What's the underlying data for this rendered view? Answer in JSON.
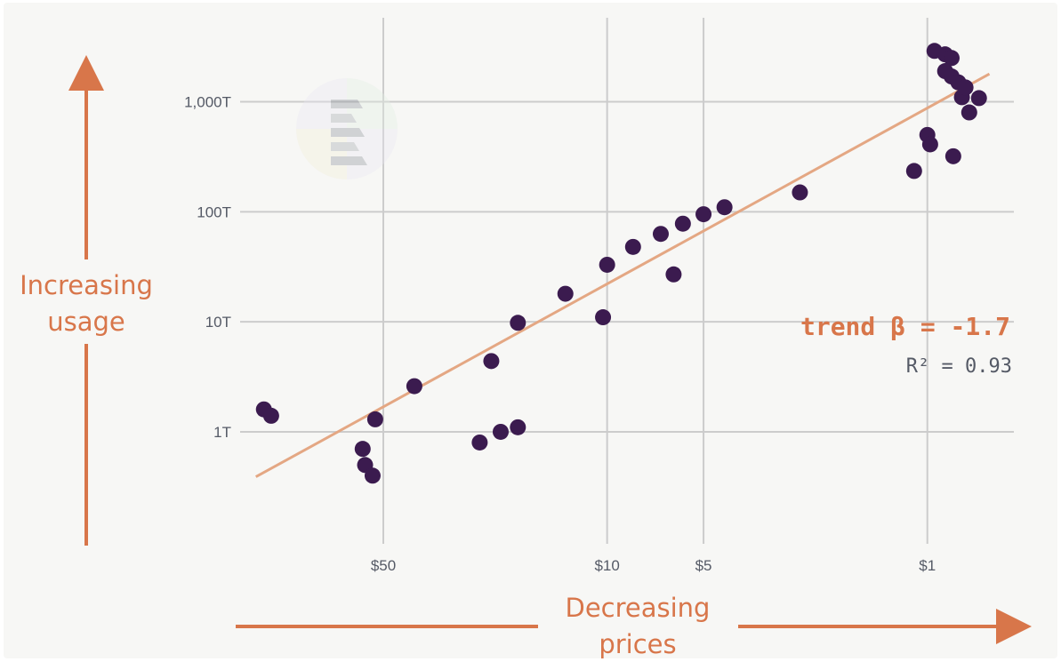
{
  "chart_data": {
    "type": "scatter",
    "x_scale": "log (reversed)",
    "y_scale": "log",
    "x_tick_labels": [
      "$50",
      "$10",
      "$5",
      "$1"
    ],
    "x_tick_values": [
      50,
      10,
      5,
      1
    ],
    "y_tick_labels": [
      "1T",
      "10T",
      "100T",
      "1,000T"
    ],
    "y_tick_values": [
      1,
      10,
      100,
      1000
    ],
    "y_unit": "T",
    "xlim": [
      140,
      0.53
    ],
    "ylim": [
      0.12,
      4000
    ],
    "grid": true,
    "ylabel_lines": [
      "Increasing",
      "usage"
    ],
    "xlabel_lines": [
      "Decreasing",
      "prices"
    ],
    "trend": {
      "label": "trend β = -1.7",
      "r2_label": "R² = 0.93",
      "slope": -1.7,
      "r2": 0.93,
      "line": [
        [
          125,
          0.39
        ],
        [
          0.64,
          1790
        ]
      ]
    },
    "points": [
      {
        "x": 118,
        "y": 1.6
      },
      {
        "x": 112,
        "y": 1.4
      },
      {
        "x": 58,
        "y": 0.7
      },
      {
        "x": 57,
        "y": 0.5
      },
      {
        "x": 54,
        "y": 0.4
      },
      {
        "x": 53,
        "y": 1.3
      },
      {
        "x": 40,
        "y": 2.6
      },
      {
        "x": 25,
        "y": 0.8
      },
      {
        "x": 23,
        "y": 4.4
      },
      {
        "x": 21.5,
        "y": 1.0
      },
      {
        "x": 19,
        "y": 9.8
      },
      {
        "x": 19,
        "y": 1.1
      },
      {
        "x": 13.5,
        "y": 18
      },
      {
        "x": 10.3,
        "y": 11
      },
      {
        "x": 10,
        "y": 33
      },
      {
        "x": 8.3,
        "y": 48
      },
      {
        "x": 6.8,
        "y": 63
      },
      {
        "x": 6.2,
        "y": 27
      },
      {
        "x": 5.8,
        "y": 78
      },
      {
        "x": 5.0,
        "y": 95
      },
      {
        "x": 4.3,
        "y": 110
      },
      {
        "x": 2.5,
        "y": 150
      },
      {
        "x": 1.1,
        "y": 235
      },
      {
        "x": 1.0,
        "y": 500
      },
      {
        "x": 0.98,
        "y": 410
      },
      {
        "x": 0.95,
        "y": 2900
      },
      {
        "x": 0.88,
        "y": 2700
      },
      {
        "x": 0.88,
        "y": 1900
      },
      {
        "x": 0.84,
        "y": 2500
      },
      {
        "x": 0.84,
        "y": 1700
      },
      {
        "x": 0.83,
        "y": 320
      },
      {
        "x": 0.8,
        "y": 1500
      },
      {
        "x": 0.78,
        "y": 1100
      },
      {
        "x": 0.76,
        "y": 1350
      },
      {
        "x": 0.74,
        "y": 800
      },
      {
        "x": 0.69,
        "y": 1080
      }
    ]
  },
  "colors": {
    "accent": "#d8764a",
    "trend_line": "#e4a783",
    "point": "#3b1b4f",
    "grid": "#cccccc",
    "tick_text": "#555a66"
  },
  "logo": {
    "icon": "stacked-layers-logo-icon"
  }
}
